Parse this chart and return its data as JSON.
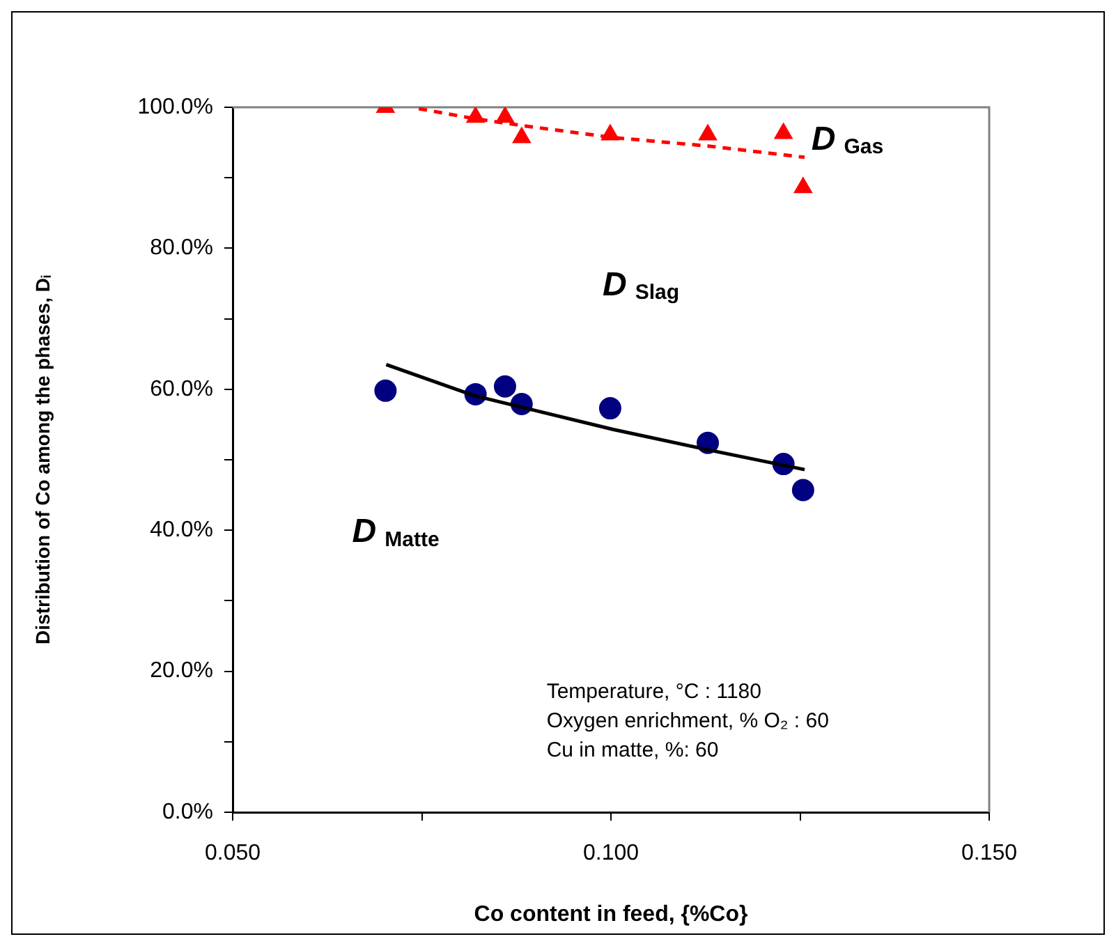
{
  "chart_data": {
    "type": "scatter",
    "xlabel": "Co content in feed, {%Co}",
    "ylabel": "Distribution of Co among the phases, Dᵢ",
    "xlim": [
      0.05,
      0.15
    ],
    "xticks": [
      {
        "value": 0.05,
        "label": "0.050"
      },
      {
        "value": 0.075,
        "label": null
      },
      {
        "value": 0.1,
        "label": "0.100"
      },
      {
        "value": 0.125,
        "label": null
      },
      {
        "value": 0.15,
        "label": "0.150"
      }
    ],
    "ylim": [
      0,
      100
    ],
    "yticks": [
      {
        "value": 0,
        "label": "0.0%"
      },
      {
        "value": 10,
        "label": null
      },
      {
        "value": 20,
        "label": "20.0%"
      },
      {
        "value": 30,
        "label": null
      },
      {
        "value": 40,
        "label": "40.0%"
      },
      {
        "value": 50,
        "label": null
      },
      {
        "value": 60,
        "label": "60.0%"
      },
      {
        "value": 70,
        "label": null
      },
      {
        "value": 80,
        "label": "80.0%"
      },
      {
        "value": 90,
        "label": null
      },
      {
        "value": 100,
        "label": "100.0%"
      }
    ],
    "grid": false,
    "legend": false,
    "series": [
      {
        "marker": "triangle",
        "color": "#ff0000",
        "x": [
          0.0702,
          0.0821,
          0.086,
          0.0882,
          0.0999,
          0.1128,
          0.1228,
          0.1254
        ],
        "values": [
          100,
          98.6,
          98.6,
          95.7,
          96.1,
          96.1,
          96.3,
          88.6
        ]
      },
      {
        "marker": "circle",
        "color": "#000080",
        "x": [
          0.0702,
          0.0821,
          0.086,
          0.0882,
          0.0999,
          0.1128,
          0.1228,
          0.1254
        ],
        "values": [
          59.8,
          59.3,
          60.4,
          57.9,
          57.3,
          52.4,
          49.4,
          45.7
        ]
      },
      {
        "type": "line",
        "marker": "none",
        "line_style": "dashed",
        "color": "#ff0000",
        "x": [
          0.0746,
          0.0819,
          0.0883,
          0.1003,
          0.1129,
          0.1256
        ],
        "values": [
          99.8,
          98.4,
          97.4,
          95.7,
          94.5,
          92.9
        ]
      },
      {
        "type": "line",
        "marker": "none",
        "line_style": "solid",
        "color": "#000000",
        "x": [
          0.0703,
          0.0819,
          0.1003,
          0.1129,
          0.1256
        ],
        "values": [
          63.5,
          59.1,
          54.3,
          51.4,
          48.6
        ]
      }
    ],
    "annotations": [
      "D$_{Gas}$",
      "D$_{Slag}$",
      "D$_{Matte}$",
      "Temperature, °C : 1180",
      "Oxygen enrichment, % O₂ : 60",
      "Cu in matte, %: 60"
    ]
  }
}
